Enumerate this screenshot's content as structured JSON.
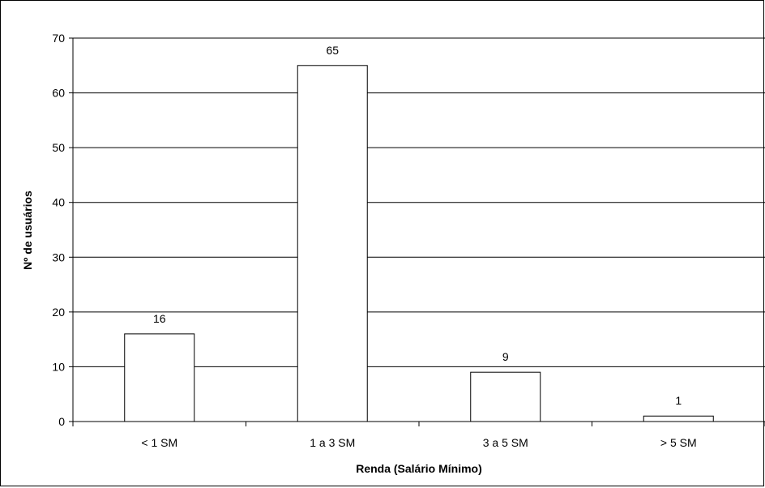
{
  "chart_data": {
    "type": "bar",
    "categories": [
      "< 1 SM",
      "1 a 3 SM",
      "3 a 5 SM",
      "> 5 SM"
    ],
    "values": [
      16,
      65,
      9,
      1
    ],
    "data_labels": [
      "16",
      "65",
      "9",
      "1"
    ],
    "xlabel": "Renda (Salário Mínimo)",
    "ylabel": "Nº de usuários",
    "ylim": [
      0,
      70
    ],
    "yticks": [
      0,
      10,
      20,
      30,
      40,
      50,
      60,
      70
    ],
    "grid": true,
    "legend": "none",
    "colors": {
      "bar_fill": "#ffffff",
      "bar_stroke": "#000000",
      "grid": "#000000"
    }
  }
}
